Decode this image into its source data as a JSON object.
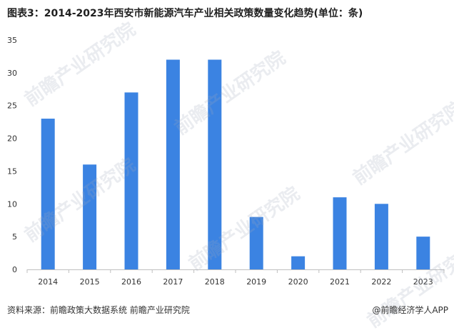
{
  "title": "图表3：2014-2023年西安市新能源汽车产业相关政策数量变化趋势(单位：条)",
  "watermark": "前瞻产业研究院",
  "footer": {
    "source": "资料来源：前瞻政策大数据系统 前瞻产业研究院",
    "brand": "@前瞻经济学人APP"
  },
  "colors": {
    "bar": "#3b83e2",
    "axis": "#bfbfbf",
    "text": "#333333"
  },
  "chart_data": {
    "type": "bar",
    "categories": [
      "2014",
      "2015",
      "2016",
      "2017",
      "2018",
      "2019",
      "2020",
      "2021",
      "2022",
      "2023"
    ],
    "values": [
      23,
      16,
      27,
      32,
      32,
      8,
      2,
      11,
      10,
      5
    ],
    "ylim": [
      0,
      35
    ],
    "yticks": [
      0,
      5,
      10,
      15,
      20,
      25,
      30,
      35
    ],
    "grid": false
  }
}
